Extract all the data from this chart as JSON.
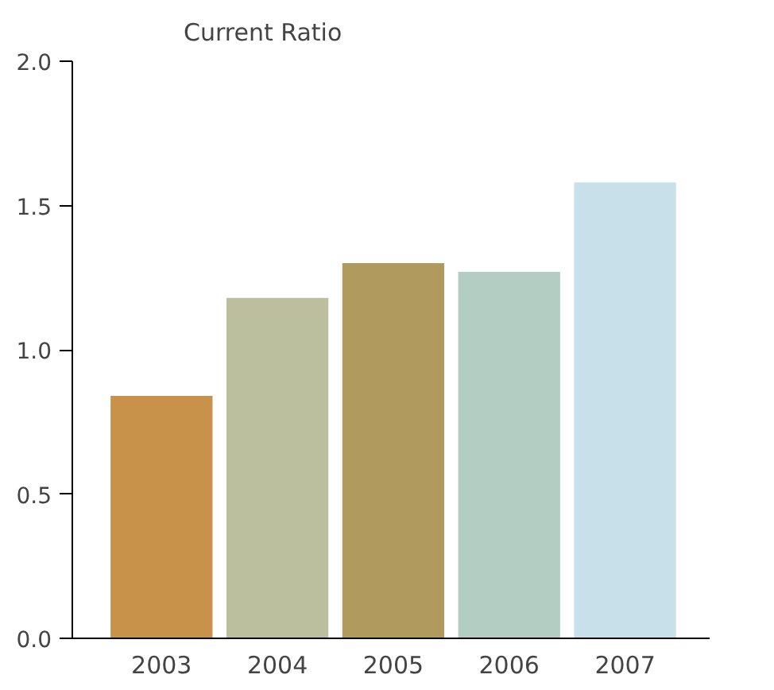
{
  "chart_data": {
    "type": "bar",
    "title": "Current Ratio",
    "categories": [
      "2003",
      "2004",
      "2005",
      "2006",
      "2007"
    ],
    "values": [
      0.84,
      1.18,
      1.3,
      1.27,
      1.58
    ],
    "colors": [
      "#c8924a",
      "#bcbf9e",
      "#b09a5e",
      "#b4cdc3",
      "#c8e0ea"
    ],
    "ylim": [
      0,
      2.0
    ],
    "yticks": [
      {
        "value": 0,
        "label": "0.0"
      },
      {
        "value": 0.5,
        "label": "0.5"
      },
      {
        "value": 1.0,
        "label": "1.0"
      },
      {
        "value": 1.5,
        "label": "1.5"
      },
      {
        "value": 2.0,
        "label": "2.0"
      }
    ],
    "grid": false
  }
}
